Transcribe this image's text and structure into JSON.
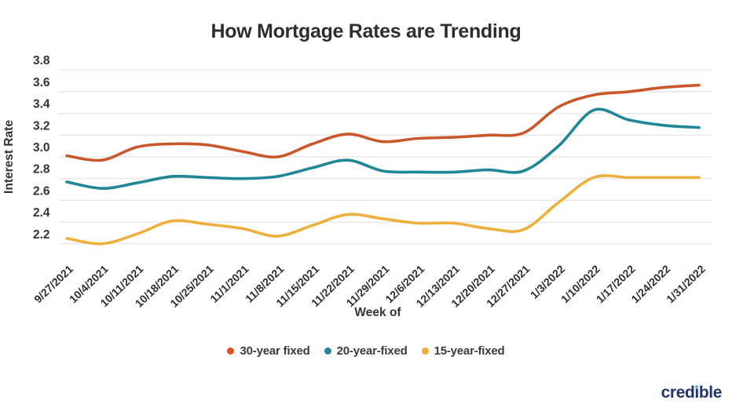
{
  "title": "How Mortgage Rates are Trending",
  "logo": {
    "text": "credible"
  },
  "colors": {
    "grid": "#e3e3e3",
    "tick_text": "#333333",
    "axis_title_text": "#333333",
    "title_text": "#2d2d2d",
    "legend_text": "#3a3a3a",
    "logo_navy": "#24356d",
    "logo_dot_blue": "#7ea7d8"
  },
  "chart_data": {
    "type": "line",
    "title": "How Mortgage Rates are Trending",
    "xlabel": "Week of",
    "ylabel": "Interest Rate",
    "ylim": [
      2.1,
      3.9
    ],
    "y_ticks": [
      3.8,
      3.6,
      3.4,
      3.2,
      3.0,
      2.8,
      2.6,
      2.4,
      2.2
    ],
    "grid": true,
    "legend_position": "bottom",
    "x": [
      "9/27/2021",
      "10/4/2021",
      "10/11/2021",
      "10/18/2021",
      "10/25/2021",
      "11/1/2021",
      "11/8/2021",
      "11/15/2021",
      "11/22/2021",
      "11/29/2021",
      "12/6/2021",
      "12/13/2021",
      "12/20/2021",
      "12/27/2021",
      "1/3/2022",
      "1/10/2022",
      "1/17/2022",
      "1/24/2022",
      "1/31/2022"
    ],
    "series": [
      {
        "name": "30-year fixed",
        "color": "#c9572b",
        "dot_color": "#d9521f",
        "values": [
          3.01,
          2.97,
          3.09,
          3.12,
          3.11,
          3.05,
          3.0,
          3.12,
          3.21,
          3.14,
          3.17,
          3.18,
          3.2,
          3.22,
          3.46,
          3.57,
          3.6,
          3.64,
          3.66
        ]
      },
      {
        "name": "20-year-fixed",
        "color": "#1f8796",
        "dot_color": "#1f8796",
        "values": [
          2.77,
          2.71,
          2.76,
          2.82,
          2.81,
          2.8,
          2.82,
          2.9,
          2.97,
          2.87,
          2.86,
          2.86,
          2.88,
          2.87,
          3.1,
          3.43,
          3.34,
          3.29,
          3.27
        ]
      },
      {
        "name": "15-year-fixed",
        "color": "#edb03c",
        "dot_color": "#f2a83a",
        "values": [
          2.25,
          2.2,
          2.29,
          2.41,
          2.38,
          2.34,
          2.27,
          2.37,
          2.47,
          2.43,
          2.39,
          2.39,
          2.34,
          2.33,
          2.58,
          2.81,
          2.81,
          2.81,
          2.81
        ]
      }
    ]
  }
}
